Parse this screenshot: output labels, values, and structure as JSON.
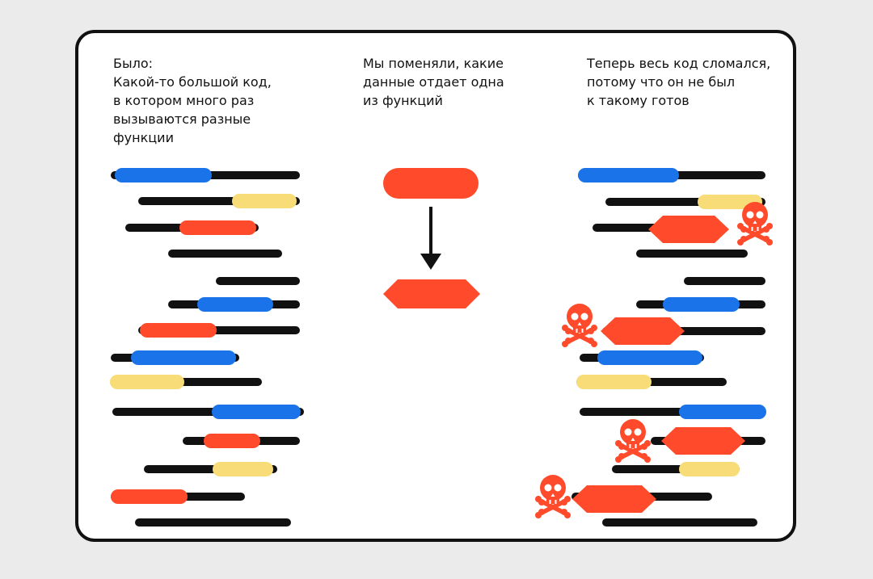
{
  "captions": {
    "before": "Было:\nКакой-то большой код,\nв котором много раз\nвызываются разные\nфункции",
    "change": "Мы поменяли, какие\nданные отдает одна\nиз функций",
    "after": "Теперь весь код сломался,\nпотому что он не был\nк такому готов"
  },
  "colors": {
    "line": "#111111",
    "blue": "#1a73e8",
    "yellow": "#f8dc78",
    "red": "#ff4b2b",
    "background": "#ebebeb",
    "card": "#ffffff"
  },
  "icons": [
    "skull-crossbones-icon",
    "down-arrow-icon"
  ]
}
